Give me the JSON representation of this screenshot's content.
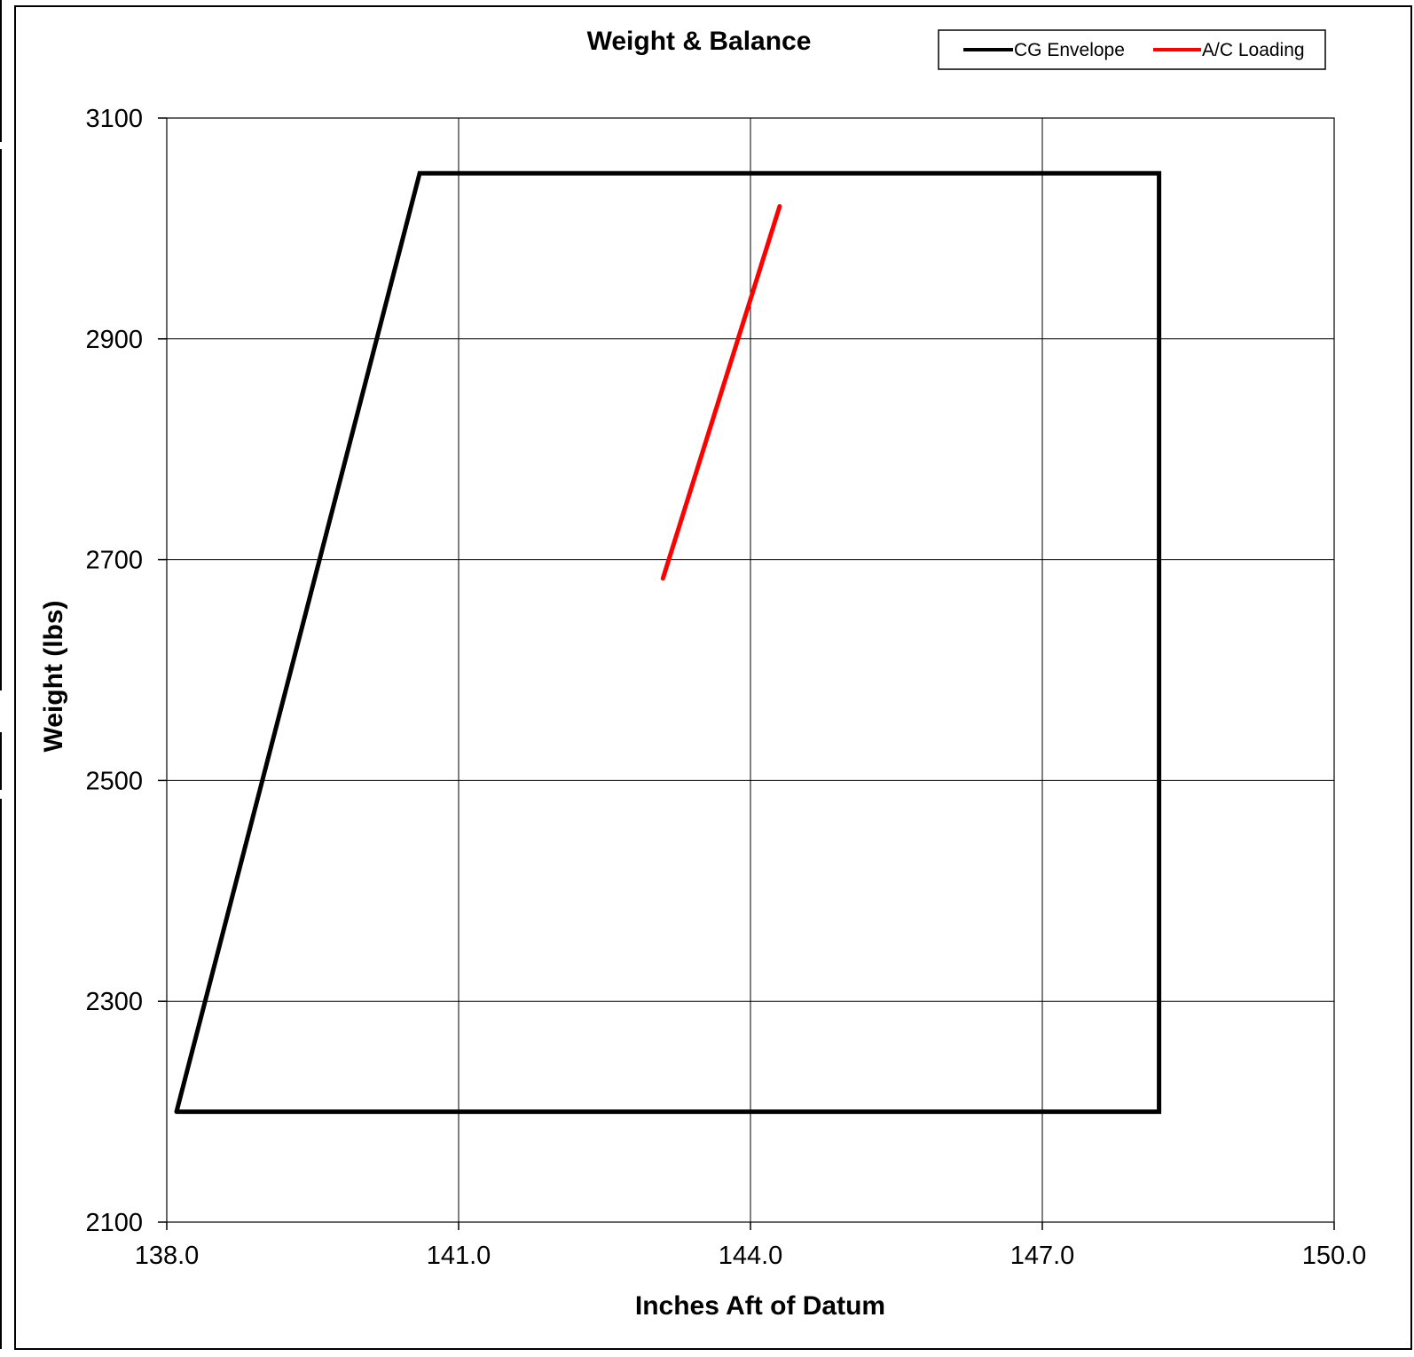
{
  "chart_data": {
    "type": "line",
    "title": "Weight & Balance",
    "xlabel": "Inches Aft of Datum",
    "ylabel": "Weight (lbs)",
    "xlim": [
      138.0,
      150.0
    ],
    "ylim": [
      2100,
      3100
    ],
    "x_ticks": [
      "138.0",
      "141.0",
      "144.0",
      "147.0",
      "150.0"
    ],
    "y_ticks": [
      "3100",
      "2900",
      "2700",
      "2500",
      "2300",
      "2100"
    ],
    "x_tick_values": [
      138,
      141,
      144,
      147,
      150
    ],
    "y_tick_values": [
      3100,
      2900,
      2700,
      2500,
      2300,
      2100
    ],
    "grid": true,
    "legend_position": "top-right",
    "series": [
      {
        "name": "CG Envelope",
        "color": "#000000",
        "points": [
          [
            138.1,
            2200
          ],
          [
            140.6,
            3050
          ],
          [
            148.2,
            3050
          ],
          [
            148.2,
            2200
          ],
          [
            138.1,
            2200
          ]
        ]
      },
      {
        "name": "A/C Loading",
        "color": "#ff0000",
        "points": [
          [
            143.1,
            2683
          ],
          [
            144.3,
            3020
          ]
        ]
      }
    ]
  }
}
